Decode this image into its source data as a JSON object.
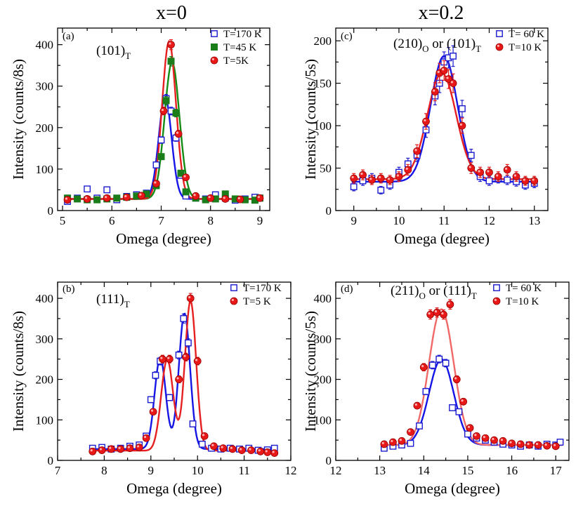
{
  "figure": {
    "col_titles": [
      "x=0",
      "x=0.2"
    ]
  },
  "colors": {
    "blue": "#1c1cd0",
    "red": "#e81818",
    "green": "#1a7d1a",
    "fit_blue": "#1515e6",
    "fit_red": "#e62020",
    "fit_green": "#158c15",
    "fit_pink": "#f06868"
  },
  "chart_data": [
    {
      "id": "a",
      "type": "scatter",
      "panel_label": "(a)",
      "annotation": {
        "main": "(101)",
        "sub": "T",
        "rest_main": "",
        "rest_sub": ""
      },
      "xlabel": "Omega (degree)",
      "ylabel": "Intensity (counts/8s)",
      "xlim": [
        4.9,
        9.2
      ],
      "ylim": [
        0,
        440
      ],
      "xticks": [
        5,
        6,
        7,
        8,
        9
      ],
      "yticks": [
        0,
        100,
        200,
        300,
        400
      ],
      "x_minor_step": 0.5,
      "y_minor_step": 50,
      "legend": [
        {
          "label": "T=170 K",
          "marker": "open-square",
          "color": "#1c1cd0"
        },
        {
          "label": "T=45 K",
          "marker": "filled-square",
          "color": "#1a7d1a"
        },
        {
          "label": "T=5K",
          "marker": "ball",
          "color": "#e81818"
        }
      ],
      "series": [
        {
          "name": "T=170 K",
          "marker": "open-square",
          "color": "#1c1cd0",
          "x": [
            5.1,
            5.3,
            5.5,
            5.7,
            5.9,
            6.1,
            6.3,
            6.5,
            6.7,
            6.9,
            7.0,
            7.1,
            7.2,
            7.3,
            7.4,
            7.5,
            7.7,
            7.9,
            8.1,
            8.3,
            8.5,
            8.7,
            8.9,
            9.0
          ],
          "y": [
            22,
            30,
            52,
            30,
            50,
            26,
            34,
            38,
            42,
            110,
            170,
            270,
            240,
            175,
            85,
            35,
            30,
            28,
            38,
            30,
            25,
            28,
            32,
            30
          ]
        },
        {
          "name": "T=45 K",
          "marker": "filled-square",
          "color": "#1a7d1a",
          "x": [
            5.1,
            5.3,
            5.5,
            5.7,
            5.9,
            6.1,
            6.3,
            6.5,
            6.7,
            6.9,
            7.0,
            7.1,
            7.2,
            7.3,
            7.4,
            7.5,
            7.7,
            7.9,
            8.1,
            8.3,
            8.5,
            8.7,
            8.9,
            9.0
          ],
          "y": [
            30,
            28,
            26,
            26,
            28,
            30,
            32,
            35,
            40,
            60,
            130,
            265,
            360,
            235,
            90,
            45,
            30,
            26,
            28,
            40,
            28,
            26,
            25,
            30
          ]
        },
        {
          "name": "T=5K",
          "marker": "ball",
          "color": "#e81818",
          "x": [
            5.1,
            5.5,
            5.9,
            6.3,
            6.6,
            6.9,
            7.05,
            7.2,
            7.35,
            7.5,
            7.7,
            8.0,
            8.3,
            8.6,
            9.0
          ],
          "y": [
            26,
            28,
            30,
            32,
            36,
            65,
            240,
            400,
            185,
            80,
            35,
            30,
            28,
            27,
            30
          ]
        }
      ],
      "fits": [
        {
          "color": "#1515e6",
          "baseline": 28,
          "peaks": [
            {
              "amp": 245,
              "center": 7.08,
              "sigma": 0.13
            }
          ]
        },
        {
          "color": "#158c15",
          "baseline": 28,
          "peaks": [
            {
              "amp": 330,
              "center": 7.22,
              "sigma": 0.15
            }
          ]
        },
        {
          "color": "#e62020",
          "baseline": 28,
          "peaks": [
            {
              "amp": 380,
              "center": 7.16,
              "sigma": 0.14
            }
          ]
        }
      ]
    },
    {
      "id": "c",
      "type": "scatter",
      "panel_label": "(c)",
      "annotation": {
        "main": "(210)",
        "sub": "O",
        "rest_main": " or (101)",
        "rest_sub": "T"
      },
      "xlabel": "Omega (degree)",
      "ylabel": "Intensity (counts/5s)",
      "xlim": [
        8.6,
        13.3
      ],
      "ylim": [
        0,
        215
      ],
      "xticks": [
        9,
        10,
        11,
        12,
        13
      ],
      "yticks": [
        0,
        50,
        100,
        150,
        200
      ],
      "x_minor_step": 0.5,
      "y_minor_step": 25,
      "legend": [
        {
          "label": "T= 60 K",
          "marker": "open-square",
          "color": "#1c1cd0"
        },
        {
          "label": "T=10 K",
          "marker": "ball",
          "color": "#e81818"
        }
      ],
      "series": [
        {
          "name": "T= 60 K",
          "marker": "open-square",
          "color": "#1c1cd0",
          "x": [
            9.0,
            9.2,
            9.4,
            9.6,
            9.8,
            10.0,
            10.2,
            10.4,
            10.6,
            10.8,
            10.9,
            11.0,
            11.1,
            11.2,
            11.4,
            11.6,
            11.8,
            12.0,
            12.2,
            12.4,
            12.6,
            12.8,
            13.0
          ],
          "y": [
            28,
            35,
            38,
            24,
            30,
            45,
            55,
            65,
            95,
            135,
            150,
            175,
            180,
            182,
            120,
            65,
            40,
            35,
            38,
            36,
            34,
            30,
            32
          ]
        },
        {
          "name": "T=10 K",
          "marker": "ball",
          "color": "#e81818",
          "x": [
            9.0,
            9.2,
            9.4,
            9.6,
            9.8,
            10.0,
            10.2,
            10.4,
            10.6,
            10.8,
            10.9,
            11.0,
            11.1,
            11.2,
            11.4,
            11.6,
            11.8,
            12.0,
            12.2,
            12.4,
            12.6,
            12.8,
            13.0
          ],
          "y": [
            38,
            42,
            36,
            38,
            36,
            40,
            48,
            70,
            105,
            140,
            162,
            165,
            155,
            150,
            100,
            50,
            45,
            45,
            40,
            48,
            40,
            35,
            35
          ]
        }
      ],
      "fits": [
        {
          "color": "#1515e6",
          "baseline": 34,
          "peaks": [
            {
              "amp": 148,
              "center": 11.0,
              "sigma": 0.3
            }
          ]
        },
        {
          "color": "#e62020",
          "baseline": 37,
          "peaks": [
            {
              "amp": 125,
              "center": 10.95,
              "sigma": 0.32
            }
          ]
        }
      ]
    },
    {
      "id": "b",
      "type": "scatter",
      "panel_label": "(b)",
      "annotation": {
        "main": "(111)",
        "sub": "T",
        "rest_main": "",
        "rest_sub": ""
      },
      "xlabel": "Omega (degree)",
      "ylabel": "Intensity (counts/8s)",
      "xlim": [
        7,
        12
      ],
      "ylim": [
        0,
        440
      ],
      "xticks": [
        7,
        8,
        9,
        10,
        11,
        12
      ],
      "yticks": [
        0,
        100,
        200,
        300,
        400
      ],
      "x_minor_step": 0.5,
      "y_minor_step": 50,
      "legend": [
        {
          "label": "T=170 K",
          "marker": "open-square",
          "color": "#1c1cd0"
        },
        {
          "label": "T=5 K",
          "marker": "ball",
          "color": "#e81818"
        }
      ],
      "series": [
        {
          "name": "T=170 K",
          "marker": "open-square",
          "color": "#1c1cd0",
          "x": [
            7.75,
            7.95,
            8.15,
            8.35,
            8.55,
            8.75,
            8.9,
            9.0,
            9.1,
            9.2,
            9.4,
            9.6,
            9.7,
            9.8,
            9.9,
            10.1,
            10.3,
            10.5,
            10.7,
            10.9,
            11.1,
            11.3,
            11.5,
            11.65
          ],
          "y": [
            30,
            32,
            28,
            30,
            35,
            38,
            60,
            150,
            210,
            245,
            155,
            260,
            350,
            290,
            90,
            40,
            30,
            28,
            30,
            28,
            30,
            25,
            26,
            30
          ]
        },
        {
          "name": "T=5 K",
          "marker": "ball",
          "color": "#e81818",
          "x": [
            7.75,
            7.95,
            8.15,
            8.35,
            8.55,
            8.75,
            8.9,
            9.05,
            9.25,
            9.4,
            9.6,
            9.75,
            9.85,
            10.0,
            10.15,
            10.35,
            10.55,
            10.75,
            10.95,
            11.15,
            11.35,
            11.5,
            11.65
          ],
          "y": [
            22,
            25,
            28,
            28,
            30,
            32,
            55,
            120,
            250,
            250,
            200,
            255,
            400,
            245,
            60,
            35,
            30,
            28,
            25,
            25,
            22,
            20,
            18
          ]
        }
      ],
      "fits": [
        {
          "color": "#1515e6",
          "baseline": 28,
          "peaks": [
            {
              "amp": 225,
              "center": 9.2,
              "sigma": 0.12
            },
            {
              "amp": 335,
              "center": 9.72,
              "sigma": 0.12
            }
          ]
        },
        {
          "color": "#e62020",
          "baseline": 24,
          "peaks": [
            {
              "amp": 225,
              "center": 9.35,
              "sigma": 0.13
            },
            {
              "amp": 370,
              "center": 9.85,
              "sigma": 0.12
            }
          ]
        }
      ]
    },
    {
      "id": "d",
      "type": "scatter",
      "panel_label": "(d)",
      "annotation": {
        "main": "(211)",
        "sub": "O",
        "rest_main": " or (111)",
        "rest_sub": "T"
      },
      "xlabel": "Omega (degree)",
      "ylabel": "Intensity (counts/5s)",
      "xlim": [
        12,
        17.3
      ],
      "ylim": [
        0,
        440
      ],
      "xticks": [
        12,
        13,
        14,
        15,
        16,
        17
      ],
      "yticks": [
        0,
        100,
        200,
        300,
        400
      ],
      "x_minor_step": 0.5,
      "y_minor_step": 50,
      "legend": [
        {
          "label": "T= 60 K",
          "marker": "open-square",
          "color": "#1c1cd0"
        },
        {
          "label": "T=10 K",
          "marker": "ball",
          "color": "#e81818"
        }
      ],
      "series": [
        {
          "name": "T= 60 K",
          "marker": "open-square",
          "color": "#1c1cd0",
          "x": [
            13.1,
            13.3,
            13.5,
            13.7,
            13.9,
            14.05,
            14.2,
            14.35,
            14.5,
            14.65,
            14.8,
            15.0,
            15.2,
            15.4,
            15.6,
            15.8,
            16.0,
            16.2,
            16.4,
            16.6,
            16.8,
            17.0,
            17.1
          ],
          "y": [
            30,
            35,
            38,
            42,
            85,
            170,
            235,
            250,
            240,
            130,
            120,
            65,
            55,
            50,
            45,
            40,
            38,
            35,
            38,
            35,
            40,
            38,
            45
          ]
        },
        {
          "name": "T=10 K",
          "marker": "ball",
          "color": "#e81818",
          "x": [
            13.1,
            13.3,
            13.5,
            13.7,
            13.85,
            14.0,
            14.15,
            14.3,
            14.45,
            14.6,
            14.75,
            14.9,
            15.05,
            15.2,
            15.4,
            15.6,
            15.8,
            16.0,
            16.2,
            16.4,
            16.6,
            16.8,
            17.0
          ],
          "y": [
            40,
            45,
            48,
            70,
            135,
            230,
            360,
            365,
            360,
            385,
            200,
            145,
            80,
            60,
            55,
            50,
            48,
            42,
            40,
            38,
            38,
            36,
            35
          ]
        }
      ],
      "fits": [
        {
          "color": "#1515e6",
          "baseline": 38,
          "peaks": [
            {
              "amp": 212,
              "center": 14.4,
              "sigma": 0.28
            }
          ]
        },
        {
          "color": "#f06868",
          "baseline": 38,
          "peaks": [
            {
              "amp": 335,
              "center": 14.4,
              "sigma": 0.28
            }
          ]
        }
      ]
    }
  ]
}
